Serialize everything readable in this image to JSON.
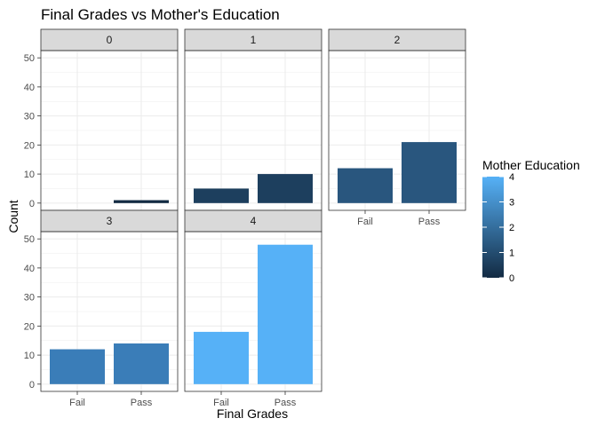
{
  "chart_data": {
    "type": "bar",
    "title": "Final Grades vs Mother's Education",
    "xlabel": "Final Grades",
    "ylabel": "Count",
    "categories": [
      "Fail",
      "Pass"
    ],
    "ylim": [
      0,
      50
    ],
    "yticks": [
      0,
      10,
      20,
      30,
      40,
      50
    ],
    "grid": true,
    "facet_by": "Mother Education",
    "panels": [
      {
        "label": "0",
        "values": [
          0,
          1
        ],
        "color": "#132B43"
      },
      {
        "label": "1",
        "values": [
          5,
          10
        ],
        "color": "#1D3F5E"
      },
      {
        "label": "2",
        "values": [
          12,
          21
        ],
        "color": "#29567E"
      },
      {
        "label": "3",
        "values": [
          12,
          14
        ],
        "color": "#3A7DB8"
      },
      {
        "label": "4",
        "values": [
          18,
          48
        ],
        "color": "#56B1F7"
      }
    ],
    "legend": {
      "title": "Mother Education",
      "position": "right",
      "ticks": [
        "0",
        "1",
        "2",
        "3",
        "4"
      ],
      "low_color": "#132B43",
      "high_color": "#56B1F7"
    }
  }
}
